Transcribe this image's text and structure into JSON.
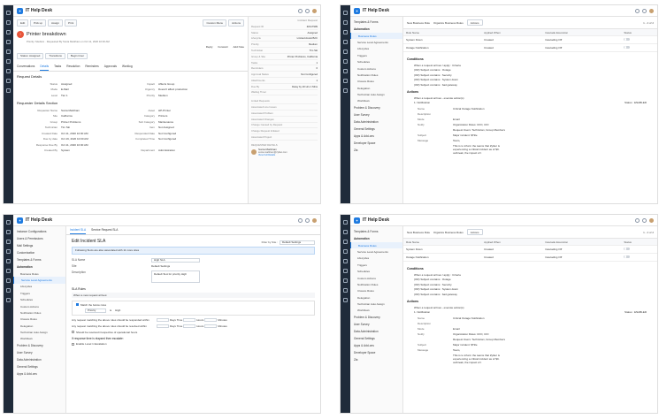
{
  "app": {
    "title": "IT Help Desk"
  },
  "q1": {
    "buttons": [
      "Edit",
      "Pick up",
      "Assign",
      "Print"
    ],
    "custom_menu": "Custom Menu",
    "actions": "Actions",
    "request_id_label": "Incident Request",
    "title": "Printer breakdown",
    "meta": "Priority: Medium · Requested By Sonia Markham on Oct 11, 2020 10:00 AM",
    "reply": "Reply",
    "forward": "Forward",
    "add_note": "Add Note",
    "status": "Status: Assigned",
    "transitions": "Transitions",
    "begin_timer": "Begin timer",
    "tabs": [
      "Conversations",
      "Details",
      "Tasks",
      "Resolution",
      "Reminders",
      "Approvals",
      "Worklog"
    ],
    "section1": "Request Details",
    "fields1": [
      [
        "Status",
        "Assigned",
        "Impact",
        "Affects Group"
      ],
      [
        "Mode",
        "E-Mail",
        "Urgency",
        "Doesn't affect production"
      ],
      [
        "Level",
        "Tier 1",
        "Priority",
        "Medium"
      ]
    ],
    "section2": "Requester Details Section",
    "fields2": [
      [
        "Requester Name",
        "Sonia Markham",
        "Asset",
        "HP-Printer"
      ],
      [
        "Site",
        "California",
        "Category",
        "Printers"
      ],
      [
        "Group",
        "Printer Problems",
        "Sub Category",
        "Maintenance"
      ],
      [
        "Technician",
        "Tim Ski",
        "Item",
        "Not Assigned"
      ],
      [
        "Created Date",
        "Oct 11, 2020 10:00 AM",
        "Responded Date",
        "Not Configured"
      ],
      [
        "Due by date",
        "Oct 19, 2020 10:00 AM",
        "Completed Time",
        "Not Configured"
      ],
      [
        "Response Due By",
        "Oct 11, 2020 10:00 AM",
        "",
        ""
      ],
      [
        "Created By",
        "System",
        "Department",
        "Administration"
      ]
    ],
    "panel": [
      [
        "Request ID",
        "#2117909"
      ],
      [
        "Status",
        "Assigned"
      ],
      [
        "Lifecycle",
        "Limited Assist B2C"
      ],
      [
        "Priority",
        "Medium"
      ],
      [
        "Technician",
        "Tim Ski"
      ],
      [
        "Group & Site",
        "Printer Problems, California"
      ],
      [
        "Tasks",
        "1"
      ],
      [
        "Reminders",
        "0"
      ],
      [
        "Approval Status",
        "Not Configured"
      ],
      [
        "Attachments",
        "1"
      ],
      [
        "Due By",
        "Delay by 20 Hrs 1 Mins"
      ],
      [
        "Waiting Timer",
        ""
      ]
    ],
    "panel_links": [
      "Linked Requests",
      "Associated Line Issues",
      "Associated Problem",
      "Associated Changes",
      "Change Caused by Request",
      "Change Request Initiated",
      "Associated Project"
    ],
    "requester_title": "REQUESTER DETAILS",
    "requester_name": "Sonia Markham",
    "requester_email": "sonia.markham@zylker.com",
    "view_profile": "View Full Details"
  },
  "q2": {
    "nav": {
      "groups": [
        {
          "label": "Templates & Forms",
          "open": false
        },
        {
          "label": "Automation",
          "open": true
        }
      ],
      "items": [
        "Business Rules",
        "Service Level Agreements",
        "Lifecycles",
        "Triggers",
        "Schedules",
        "Custom Actions",
        "Notification Rules",
        "Closure Rules",
        "Delegation",
        "Technician Auto Assign",
        "Workflows"
      ],
      "lower": [
        "Problem & Discovery",
        "User Survey",
        "Data Administration",
        "General Settings",
        "Apps & Add-ons",
        "Developer Space",
        "Zia"
      ]
    },
    "toolbar": {
      "new": "New Business Rule",
      "org": "Organize Business Rules",
      "actions": "Actions",
      "pagination": "1 - 2 of 2"
    },
    "cols": [
      "Rule Name",
      "Applied When",
      "Cascade Execution",
      "Status"
    ],
    "rows": [
      [
        "System Down",
        "Created",
        "Cascading Off"
      ],
      [
        "Outage Notification",
        "Created",
        "Cascading Off"
      ]
    ],
    "conditions_title": "Conditions",
    "conditions": [
      "When a request arrives / apply : Criteria",
      "(OR) Subject contains : Outage",
      "(OR) Subject contains : Security",
      "(OR) Subject contains : System down",
      "(OR) Subject contains : bad gateway"
    ],
    "actions_title": "Actions",
    "actions_line": "When a request arrives - execute action(s)",
    "notif_label": "1. Notification",
    "status": "Status : ENABLED",
    "details": [
      [
        "Name",
        "Critical Outage Notification"
      ],
      [
        "Description",
        ""
      ],
      [
        "Mode",
        "Email"
      ],
      [
        "Notify",
        "Organization Roles: CFO, CIO"
      ],
      [
        "",
        "Request Users: Technician, Group Members"
      ],
      [
        "Subject",
        "Major incident: $Title"
      ],
      [
        "Message",
        "Team,"
      ]
    ],
    "message_body": "This is to inform the teams that Zylker is experiencing a critical incident as of $C. outbreak, the impact of t"
  },
  "q3": {
    "nav_groups": [
      "Instance Configurations",
      "Users & Permissions",
      "Mail Settings",
      "Customization",
      "Templates & Forms",
      "Automation"
    ],
    "items": [
      "Business Rules",
      "Service Level Agreements",
      "Lifecycles",
      "Triggers",
      "Schedules",
      "Custom Actions",
      "Notification Rules",
      "Closure Rules",
      "Delegation",
      "Technician Auto Assign",
      "Workflows"
    ],
    "lower": [
      "Problem & Discovery",
      "User Survey",
      "Data Administration",
      "General Settings",
      "Apps & Add-ons"
    ],
    "tabs": [
      "Incident SLA",
      "Service Request SLA"
    ],
    "heading": "Edit Incident SLA",
    "filter_label": "Filter by Site :",
    "filter_value": "Default Settings",
    "info": "Following SLAs are also associated with 11 more sites",
    "sla_name_label": "SLA Name",
    "sla_name": "High SLA",
    "site_label": "Site",
    "site_value": "Default Settings",
    "description_label": "Description",
    "description": "Default SLA for priority High",
    "rules_title": "SLA Rules",
    "rules_when": "When a new request arrives:",
    "match_label": "Match the below rules",
    "criteria_field": "Priority",
    "criteria_op": "is",
    "criteria_value": "High",
    "resp_label": "Any request matching the above rules should be responded within",
    "resv_label": "Any request matching the above rules should be resolved within",
    "days": "Days",
    "time": "Time",
    "hours": "Hours",
    "minutes": "Minutes",
    "resp_values": [
      "0",
      "1",
      "0"
    ],
    "resv_values": [
      "0",
      "3",
      "0"
    ],
    "op_hours": "Should be resolved irrespective of operational hours",
    "escalate_title": "If response time is elapsed then escalate:",
    "escalate1": "Enable Level 1 Escalation"
  },
  "q4": {
    "pagination": "1 - 2 of 2"
  }
}
